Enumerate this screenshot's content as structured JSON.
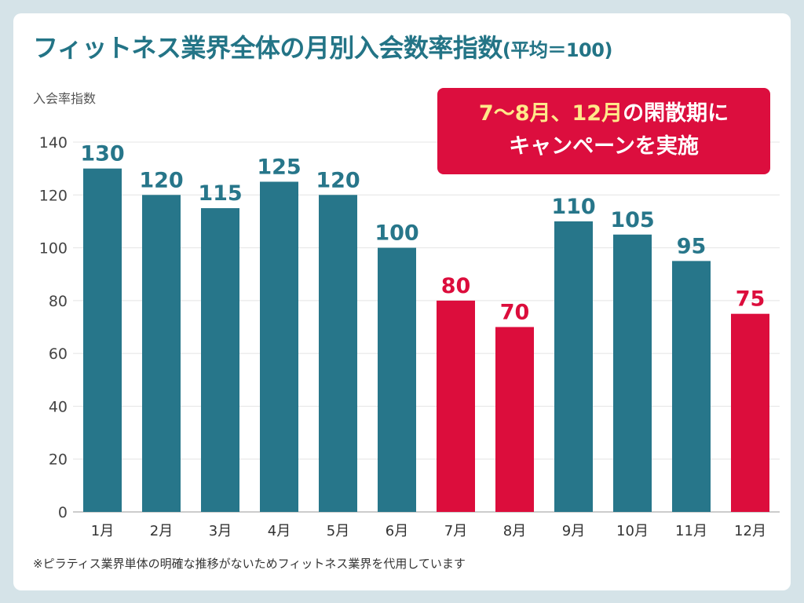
{
  "chart_data": {
    "type": "bar",
    "title": "フィットネス業界全体の月別入会数率指数",
    "title_suffix": "(平均＝100)",
    "ylabel": "入会率指数",
    "xlabel": "",
    "categories": [
      "1月",
      "2月",
      "3月",
      "4月",
      "5月",
      "6月",
      "7月",
      "8月",
      "9月",
      "10月",
      "11月",
      "12月"
    ],
    "values": [
      130,
      120,
      115,
      125,
      120,
      100,
      80,
      70,
      110,
      105,
      95,
      75
    ],
    "highlighted": [
      false,
      false,
      false,
      false,
      false,
      false,
      true,
      true,
      false,
      false,
      false,
      true
    ],
    "ylim": [
      0,
      140
    ],
    "yticks": [
      0,
      20,
      40,
      60,
      80,
      100,
      120,
      140
    ],
    "grid": true,
    "colors": {
      "normal": "#27768a",
      "highlight": "#dc0d3c"
    },
    "annotation": {
      "highlight_text": "7〜8月、12月",
      "text_rest": "の閑散期に",
      "line2": "キャンペーンを実施"
    },
    "footnote": "※ピラティス業界単体の明確な推移がないためフィットネス業界を代用しています"
  }
}
